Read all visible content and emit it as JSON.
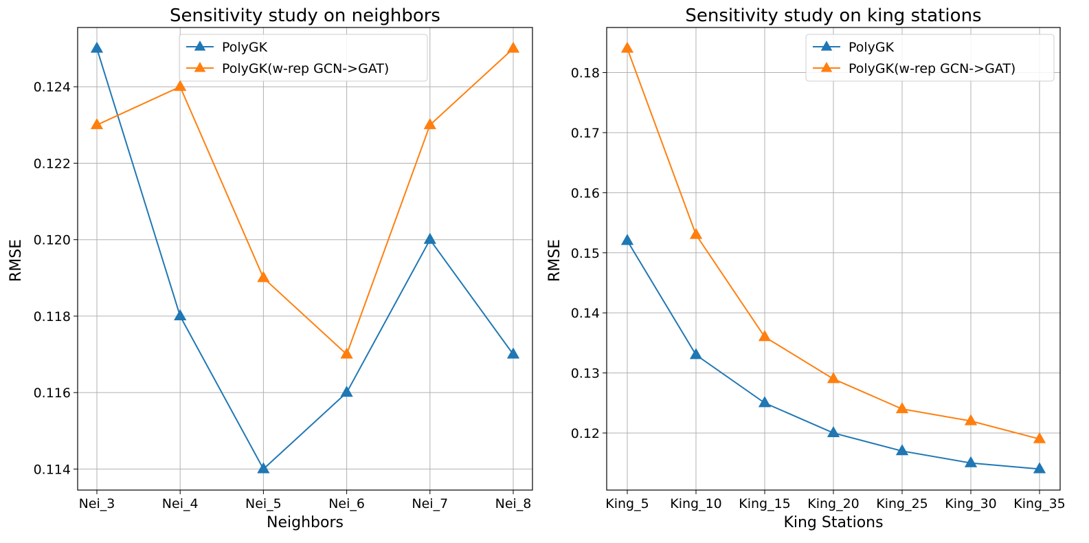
{
  "chart_data": [
    {
      "type": "line",
      "title": "Sensitivity study on neighbors",
      "xlabel": "Neighbors",
      "ylabel": "RMSE",
      "categories": [
        "Nei_3",
        "Nei_4",
        "Nei_5",
        "Nei_6",
        "Nei_7",
        "Nei_8"
      ],
      "series": [
        {
          "name": "PolyGK",
          "color": "#1f77b4",
          "marker": "triangle-up",
          "values": [
            0.125,
            0.118,
            0.114,
            0.116,
            0.12,
            0.117
          ]
        },
        {
          "name": "PolyGK(w-rep GCN->GAT)",
          "color": "#ff7f0e",
          "marker": "triangle-up",
          "values": [
            0.123,
            0.124,
            0.119,
            0.117,
            0.123,
            0.125
          ]
        }
      ],
      "ylim": [
        0.11345,
        0.12555
      ],
      "yticks": [
        0.114,
        0.116,
        0.118,
        0.12,
        0.122,
        0.124
      ],
      "ytick_labels": [
        "0.114",
        "0.116",
        "0.118",
        "0.120",
        "0.122",
        "0.124"
      ],
      "grid": true,
      "legend": "upper-center"
    },
    {
      "type": "line",
      "title": "Sensitivity study on king stations",
      "xlabel": "King Stations",
      "ylabel": "RMSE",
      "categories": [
        "King_5",
        "King_10",
        "King_15",
        "King_20",
        "King_25",
        "King_30",
        "King_35"
      ],
      "series": [
        {
          "name": "PolyGK",
          "color": "#1f77b4",
          "marker": "triangle-up",
          "values": [
            0.152,
            0.133,
            0.125,
            0.12,
            0.117,
            0.115,
            0.114
          ]
        },
        {
          "name": "PolyGK(w-rep GCN->GAT)",
          "color": "#ff7f0e",
          "marker": "triangle-up",
          "values": [
            0.184,
            0.153,
            0.136,
            0.129,
            0.124,
            0.122,
            0.119
          ]
        }
      ],
      "ylim": [
        0.1105,
        0.1875
      ],
      "yticks": [
        0.12,
        0.13,
        0.14,
        0.15,
        0.16,
        0.17,
        0.18
      ],
      "ytick_labels": [
        "0.12",
        "0.13",
        "0.14",
        "0.15",
        "0.16",
        "0.17",
        "0.18"
      ],
      "grid": true,
      "legend": "upper-right"
    }
  ]
}
